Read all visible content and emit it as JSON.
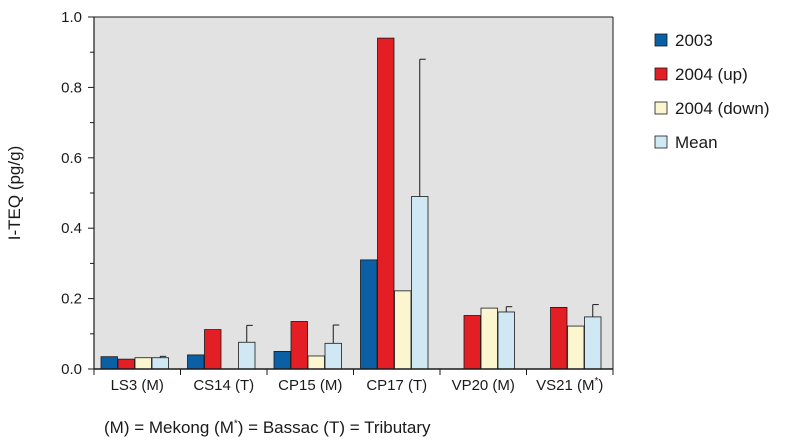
{
  "chart_data": {
    "type": "bar",
    "title": "",
    "xlabel": "",
    "ylabel": "I-TEQ (pg/g)",
    "ylim": [
      0,
      1.0
    ],
    "yticks": [
      "0.0",
      "0.2",
      "0.4",
      "0.6",
      "0.8",
      "1.0"
    ],
    "grid": false,
    "legend_position": "right",
    "categories": [
      "LS3 (M)",
      "CS14 (T)",
      "CP15 (M)",
      "CP17 (T)",
      "VP20 (M)",
      "VS21 (M*)"
    ],
    "series": [
      {
        "name": "2003",
        "color": "#0b5fa5",
        "values": [
          0.035,
          0.04,
          0.05,
          0.31,
          null,
          null
        ],
        "errors": [
          null,
          null,
          null,
          null,
          null,
          null
        ]
      },
      {
        "name": "2004 (up)",
        "color": "#e31e24",
        "values": [
          0.028,
          0.112,
          0.135,
          0.94,
          0.152,
          0.175
        ],
        "errors": [
          null,
          null,
          null,
          null,
          null,
          null
        ]
      },
      {
        "name": "2004 (down)",
        "color": "#fbf5d0",
        "values": [
          0.032,
          null,
          0.037,
          0.222,
          0.173,
          0.122
        ],
        "errors": [
          null,
          null,
          null,
          null,
          null,
          null
        ]
      },
      {
        "name": "Mean",
        "color": "#cfe8f3",
        "values": [
          0.032,
          0.076,
          0.073,
          0.49,
          0.162,
          0.148
        ],
        "errors": [
          0.004,
          0.048,
          0.052,
          0.39,
          0.015,
          0.035
        ]
      }
    ],
    "footnote": "(M) = Mekong  (M*) = Bassac  (T) = Tributary"
  },
  "colors": {
    "plot_background": "#e2e2e2",
    "axis": "#1a1a1a"
  }
}
